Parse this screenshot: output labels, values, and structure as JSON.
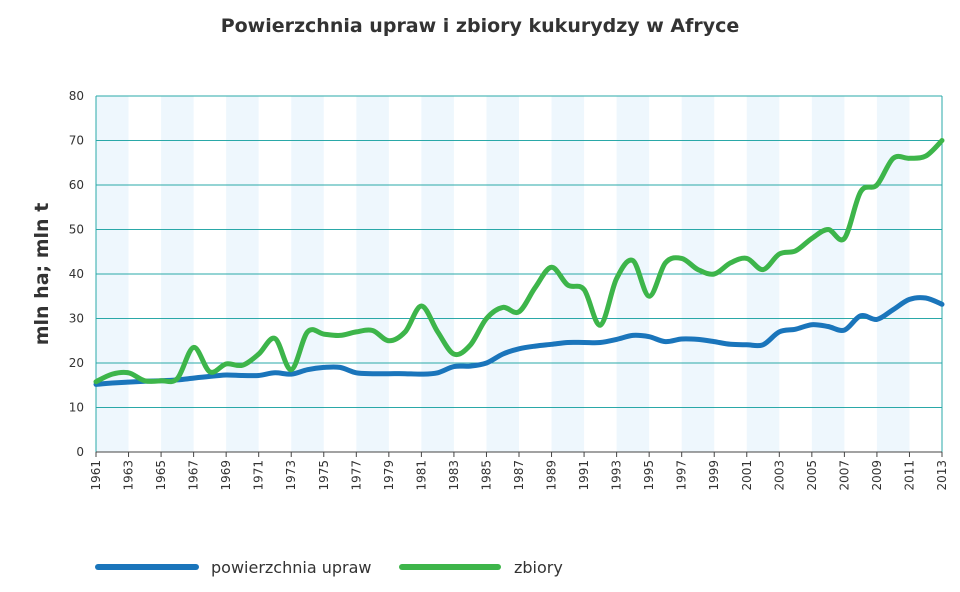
{
  "chart_data": {
    "type": "line",
    "title": "Powierzchnia upraw i zbiory kukurydzy w Afryce",
    "ylabel": "mln ha; mln t",
    "xlabel": "",
    "xlim": [
      1961,
      2013
    ],
    "ylim": [
      0,
      80
    ],
    "yticks": [
      0,
      10,
      20,
      30,
      40,
      50,
      60,
      70,
      80
    ],
    "xticks": [
      1961,
      1963,
      1965,
      1967,
      1969,
      1971,
      1973,
      1975,
      1977,
      1979,
      1981,
      1983,
      1985,
      1987,
      1989,
      1991,
      1993,
      1995,
      1997,
      1999,
      2001,
      2003,
      2005,
      2007,
      2009,
      2011,
      2013
    ],
    "grid": true,
    "legend_position": "bottom-left",
    "colors": {
      "area": "#1a75bb",
      "harvest": "#3db54a",
      "grid": "#2aa8a8",
      "band": "#eef7fd"
    },
    "x": [
      1961,
      1962,
      1963,
      1964,
      1965,
      1966,
      1967,
      1968,
      1969,
      1970,
      1971,
      1972,
      1973,
      1974,
      1975,
      1976,
      1977,
      1978,
      1979,
      1980,
      1981,
      1982,
      1983,
      1984,
      1985,
      1986,
      1987,
      1988,
      1989,
      1990,
      1991,
      1992,
      1993,
      1994,
      1995,
      1996,
      1997,
      1998,
      1999,
      2000,
      2001,
      2002,
      2003,
      2004,
      2005,
      2006,
      2007,
      2008,
      2009,
      2010,
      2011,
      2012,
      2013
    ],
    "series": [
      {
        "name": "powierzchnia upraw",
        "values": [
          15.2,
          15.5,
          15.7,
          15.9,
          16.0,
          16.2,
          16.6,
          17.0,
          17.3,
          17.2,
          17.2,
          17.8,
          17.5,
          18.5,
          19.0,
          19.0,
          17.8,
          17.6,
          17.6,
          17.6,
          17.5,
          17.8,
          19.2,
          19.3,
          20.0,
          22.0,
          23.2,
          23.8,
          24.2,
          24.6,
          24.6,
          24.6,
          25.3,
          26.2,
          25.9,
          24.8,
          25.4,
          25.3,
          24.8,
          24.2,
          24.1,
          24.1,
          27.0,
          27.6,
          28.6,
          28.2,
          27.4,
          30.6,
          29.8,
          32.0,
          34.3,
          34.6,
          33.2
        ]
      },
      {
        "name": "zbiory",
        "values": [
          15.8,
          17.5,
          17.8,
          16.0,
          16.0,
          16.5,
          23.5,
          18.0,
          19.8,
          19.5,
          22.0,
          25.5,
          18.5,
          27.0,
          26.5,
          26.2,
          27.0,
          27.3,
          25.0,
          27.0,
          32.8,
          27.0,
          22.0,
          24.0,
          30.0,
          32.5,
          31.5,
          37.0,
          41.5,
          37.5,
          36.5,
          28.5,
          39.0,
          43.0,
          35.0,
          42.5,
          43.5,
          41.0,
          40.0,
          42.5,
          43.5,
          41.0,
          44.5,
          45.2,
          48.0,
          50.0,
          48.0,
          58.5,
          60.0,
          66.0,
          66.0,
          66.5,
          70.0
        ]
      }
    ]
  }
}
